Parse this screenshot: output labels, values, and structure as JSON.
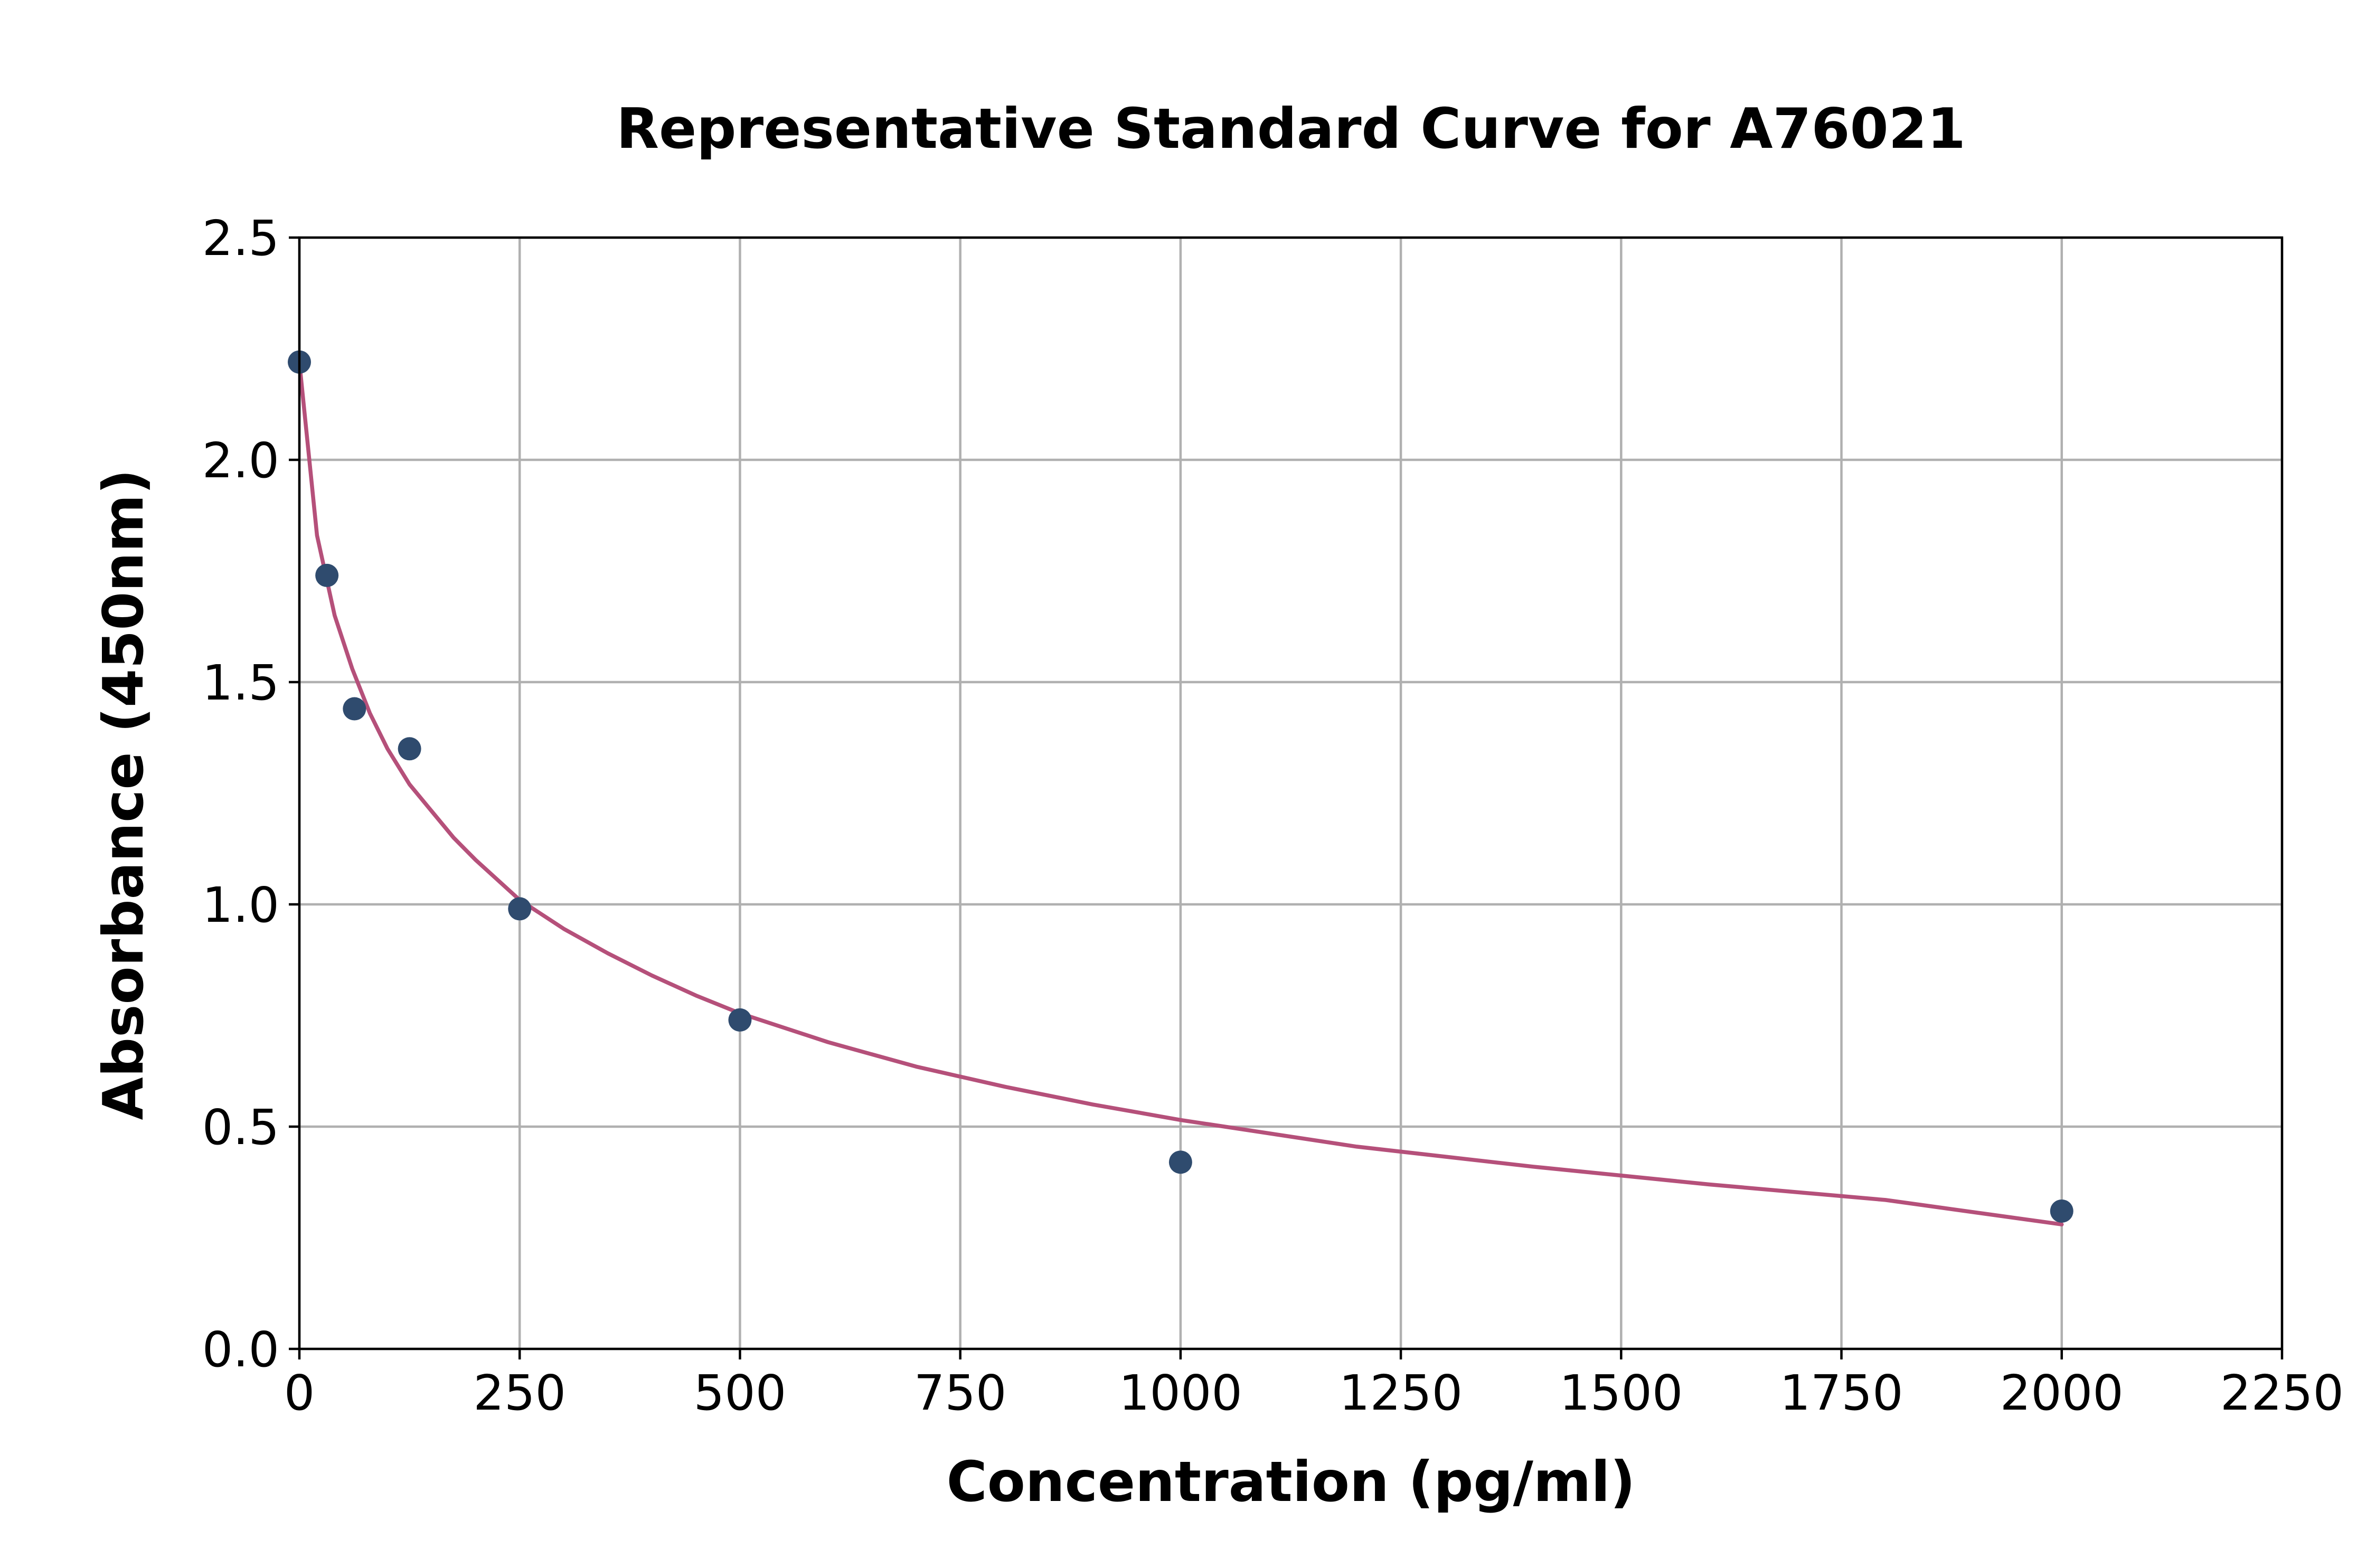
{
  "chart_data": {
    "type": "scatter",
    "title": "Representative Standard Curve for A76021",
    "xlabel": "Concentration (pg/ml)",
    "ylabel": "Absorbance (450nm)",
    "xlim": [
      0,
      2250
    ],
    "ylim": [
      0,
      2.5
    ],
    "x_ticks": [
      "0",
      "250",
      "500",
      "750",
      "1000",
      "1250",
      "1500",
      "1750",
      "2000",
      "2250"
    ],
    "y_ticks": [
      "0.0",
      "0.5",
      "1.0",
      "1.5",
      "2.0",
      "2.5"
    ],
    "grid": true,
    "series": [
      {
        "kind": "points",
        "color": "#2f4b6e",
        "x": [
          0,
          31.25,
          62.5,
          125,
          250,
          500,
          1000,
          2000
        ],
        "y": [
          2.22,
          1.74,
          1.44,
          1.35,
          0.99,
          0.74,
          0.42,
          0.31
        ]
      },
      {
        "kind": "fit-line",
        "color": "#b5507a",
        "x": [
          0,
          20,
          40,
          60,
          80,
          100,
          125,
          150,
          175,
          200,
          250,
          300,
          350,
          400,
          450,
          500,
          600,
          700,
          800,
          900,
          1000,
          1200,
          1400,
          1600,
          1800,
          2000
        ],
        "y": [
          2.22,
          1.83,
          1.65,
          1.53,
          1.43,
          1.35,
          1.27,
          1.21,
          1.15,
          1.1,
          1.01,
          0.945,
          0.89,
          0.84,
          0.795,
          0.755,
          0.69,
          0.635,
          0.59,
          0.55,
          0.515,
          0.455,
          0.41,
          0.37,
          0.335,
          0.28
        ]
      }
    ]
  }
}
